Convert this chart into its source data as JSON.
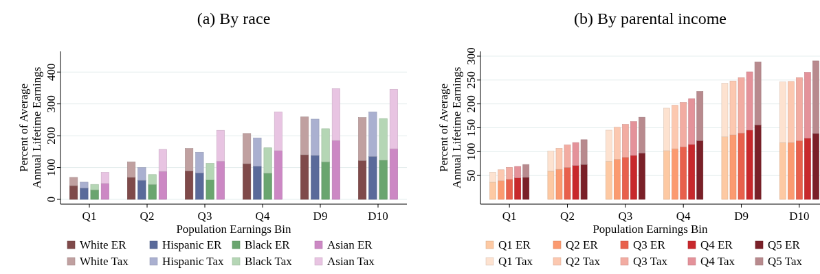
{
  "chart_data": [
    {
      "type": "bar",
      "title": "(a) By race",
      "xlabel": "Population Earnings Bin",
      "ylabel": "Percent of Average\nAnnual Lifetime Earnings",
      "stacked": true,
      "categories": [
        null,
        null,
        null,
        null,
        null,
        "Q1",
        null,
        null,
        null,
        null,
        null,
        null,
        null,
        null,
        null,
        null,
        "Q2",
        null,
        null,
        null,
        null,
        null,
        null,
        null,
        null,
        null,
        null,
        "Q3",
        null,
        null,
        null,
        null,
        null,
        null,
        null,
        null,
        null,
        null,
        "Q4",
        null,
        null,
        null,
        null,
        null,
        null,
        null,
        null,
        null,
        null,
        "D9",
        null,
        null,
        null,
        null,
        null,
        null,
        null,
        null,
        null,
        null,
        "D10",
        null,
        null,
        null,
        null,
        null
      ],
      "ylim": [
        -15,
        465
      ],
      "yticks": [
        0,
        100,
        200,
        300,
        400
      ],
      "grid": "y",
      "legend": "bottom",
      "series": [
        {
          "name": "White ER",
          "color": "#7f4a4a",
          "values": [
            null,
            null,
            43,
            null,
            null,
            null,
            null,
            null,
            null,
            null,
            null,
            null,
            null,
            69,
            null,
            null,
            null,
            null,
            null,
            null,
            null,
            null,
            null,
            null,
            89,
            null,
            null,
            null,
            null,
            null,
            null,
            null,
            null,
            null,
            null,
            112,
            null,
            null,
            null,
            null,
            null,
            null,
            null,
            null,
            null,
            null,
            140,
            null,
            null,
            null,
            null,
            null,
            null,
            null,
            null,
            null,
            null,
            122,
            null,
            null,
            null,
            null,
            null,
            null,
            null,
            null
          ]
        },
        {
          "name": "Hispanic ER",
          "color": "#5a6a9a",
          "values": [
            null,
            null,
            null,
            null,
            36,
            null,
            null,
            null,
            null,
            null,
            null,
            null,
            null,
            null,
            null,
            60,
            null,
            null,
            null,
            null,
            null,
            null,
            null,
            null,
            null,
            null,
            83,
            null,
            null,
            null,
            null,
            null,
            null,
            null,
            null,
            null,
            null,
            104,
            null,
            null,
            null,
            null,
            null,
            null,
            null,
            null,
            null,
            null,
            138,
            null,
            null,
            null,
            null,
            null,
            null,
            null,
            null,
            null,
            null,
            135,
            null,
            null,
            null,
            null,
            null,
            null
          ]
        },
        {
          "name": "Black ER",
          "color": "#6aa56f",
          "values": [
            null,
            null,
            null,
            null,
            null,
            null,
            30,
            null,
            null,
            null,
            null,
            null,
            null,
            null,
            null,
            null,
            null,
            47,
            null,
            null,
            null,
            null,
            null,
            null,
            null,
            null,
            null,
            null,
            61,
            null,
            null,
            null,
            null,
            null,
            null,
            null,
            null,
            null,
            null,
            82,
            null,
            null,
            null,
            null,
            null,
            null,
            null,
            null,
            null,
            null,
            118,
            null,
            null,
            null,
            null,
            null,
            null,
            null,
            null,
            null,
            null,
            123,
            null,
            null,
            null,
            null
          ]
        },
        {
          "name": "Asian ER",
          "color": "#cc88c4",
          "values": [
            null,
            null,
            null,
            null,
            null,
            null,
            null,
            null,
            50,
            null,
            null,
            null,
            null,
            null,
            null,
            null,
            null,
            null,
            null,
            88,
            null,
            null,
            null,
            null,
            null,
            null,
            null,
            null,
            null,
            null,
            120,
            null,
            null,
            null,
            null,
            null,
            null,
            null,
            null,
            null,
            null,
            153,
            null,
            null,
            null,
            null,
            null,
            null,
            null,
            null,
            null,
            null,
            185,
            null,
            null,
            null,
            null,
            null,
            null,
            null,
            null,
            null,
            null,
            159,
            null,
            null
          ]
        },
        {
          "name": "White Tax",
          "color": "#c0a0a0",
          "values": [
            null,
            null,
            26,
            null,
            null,
            null,
            null,
            null,
            null,
            null,
            null,
            null,
            null,
            49,
            null,
            null,
            null,
            null,
            null,
            null,
            null,
            null,
            null,
            null,
            71,
            null,
            null,
            null,
            null,
            null,
            null,
            null,
            null,
            null,
            null,
            95,
            null,
            null,
            null,
            null,
            null,
            null,
            null,
            null,
            null,
            null,
            119,
            null,
            null,
            null,
            null,
            null,
            null,
            null,
            null,
            null,
            null,
            135,
            null,
            null,
            null,
            null,
            null,
            null,
            null,
            null
          ]
        },
        {
          "name": "Hispanic Tax",
          "color": "#aab0d0",
          "values": [
            null,
            null,
            null,
            null,
            18,
            null,
            null,
            null,
            null,
            null,
            null,
            null,
            null,
            null,
            null,
            40,
            null,
            null,
            null,
            null,
            null,
            null,
            null,
            null,
            null,
            null,
            65,
            null,
            null,
            null,
            null,
            null,
            null,
            null,
            null,
            null,
            null,
            89,
            null,
            null,
            null,
            null,
            null,
            null,
            null,
            null,
            null,
            null,
            114,
            null,
            null,
            null,
            null,
            null,
            null,
            null,
            null,
            null,
            null,
            140,
            null,
            null,
            null,
            null,
            null,
            null
          ]
        },
        {
          "name": "Black Tax",
          "color": "#b5d6b5",
          "values": [
            null,
            null,
            null,
            null,
            null,
            null,
            17,
            null,
            null,
            null,
            null,
            null,
            null,
            null,
            null,
            null,
            null,
            31,
            null,
            null,
            null,
            null,
            null,
            null,
            null,
            null,
            null,
            null,
            52,
            null,
            null,
            null,
            null,
            null,
            null,
            null,
            null,
            null,
            null,
            80,
            null,
            null,
            null,
            null,
            null,
            null,
            null,
            null,
            null,
            null,
            104,
            null,
            null,
            null,
            null,
            null,
            null,
            null,
            null,
            null,
            null,
            131,
            null,
            null,
            null,
            null
          ]
        },
        {
          "name": "Asian Tax",
          "color": "#e8c4e2",
          "values": [
            null,
            null,
            null,
            null,
            null,
            null,
            null,
            null,
            35,
            null,
            null,
            null,
            null,
            null,
            null,
            null,
            null,
            null,
            null,
            69,
            null,
            null,
            null,
            null,
            null,
            null,
            null,
            null,
            null,
            null,
            97,
            null,
            null,
            null,
            null,
            null,
            null,
            null,
            null,
            null,
            null,
            122,
            null,
            null,
            null,
            null,
            null,
            null,
            null,
            null,
            null,
            null,
            163,
            null,
            null,
            null,
            null,
            null,
            null,
            null,
            null,
            null,
            null,
            187,
            null,
            null
          ]
        }
      ]
    },
    {
      "type": "bar",
      "title": "(b) By parental income",
      "xlabel": "Population Earnings Bin",
      "ylabel": "Percent of Average\nAnnual Lifetime Earnings",
      "stacked": true,
      "categories": [
        null,
        null,
        null,
        "Q1",
        null,
        null,
        null,
        null,
        null,
        null,
        "Q2",
        null,
        null,
        null,
        null,
        null,
        null,
        "Q3",
        null,
        null,
        null,
        null,
        null,
        null,
        "Q4",
        null,
        null,
        null,
        null,
        null,
        null,
        "D9",
        null,
        null,
        null,
        null,
        null,
        null,
        "D10",
        null,
        null
      ],
      "ylim": [
        -10,
        310
      ],
      "yticks": [
        50,
        100,
        150,
        200,
        250,
        300
      ],
      "grid": "y",
      "legend": "bottom",
      "series": [
        {
          "name": "Q1 ER",
          "color": "#fdc9a3",
          "values": [
            null,
            36,
            null,
            null,
            null,
            null,
            null,
            null,
            59,
            null,
            null,
            null,
            null,
            null,
            null,
            80,
            null,
            null,
            null,
            null,
            null,
            null,
            102,
            null,
            null,
            null,
            null,
            null,
            null,
            131,
            null,
            null,
            null,
            null,
            null,
            null,
            119,
            null,
            null,
            null,
            null
          ]
        },
        {
          "name": "Q2 ER",
          "color": "#fb9a70",
          "values": [
            null,
            null,
            39,
            null,
            null,
            null,
            null,
            null,
            null,
            63,
            null,
            null,
            null,
            null,
            null,
            null,
            84,
            null,
            null,
            null,
            null,
            null,
            null,
            106,
            null,
            null,
            null,
            null,
            null,
            null,
            135,
            null,
            null,
            null,
            null,
            null,
            null,
            119,
            null,
            null,
            null
          ]
        },
        {
          "name": "Q3 ER",
          "color": "#e8604c",
          "values": [
            null,
            null,
            null,
            42,
            null,
            null,
            null,
            null,
            null,
            null,
            67,
            null,
            null,
            null,
            null,
            null,
            null,
            88,
            null,
            null,
            null,
            null,
            null,
            null,
            110,
            null,
            null,
            null,
            null,
            null,
            null,
            139,
            null,
            null,
            null,
            null,
            null,
            null,
            123,
            null,
            null
          ]
        },
        {
          "name": "Q4 ER",
          "color": "#c8282c",
          "values": [
            null,
            null,
            null,
            null,
            45,
            null,
            null,
            null,
            null,
            null,
            null,
            71,
            null,
            null,
            null,
            null,
            null,
            null,
            92,
            null,
            null,
            null,
            null,
            null,
            null,
            115,
            null,
            null,
            null,
            null,
            null,
            null,
            145,
            null,
            null,
            null,
            null,
            null,
            null,
            128,
            null
          ]
        },
        {
          "name": "Q5 ER",
          "color": "#7a2028",
          "values": [
            null,
            null,
            null,
            null,
            null,
            46,
            null,
            null,
            null,
            null,
            null,
            null,
            73,
            null,
            null,
            null,
            null,
            null,
            null,
            97,
            null,
            null,
            null,
            null,
            null,
            null,
            123,
            null,
            null,
            null,
            null,
            null,
            null,
            156,
            null,
            null,
            null,
            null,
            null,
            null,
            138
          ]
        },
        {
          "name": "Q1 Tax",
          "color": "#fde2d0",
          "values": [
            null,
            21,
            null,
            null,
            null,
            null,
            null,
            null,
            42,
            null,
            null,
            null,
            null,
            null,
            null,
            65,
            null,
            null,
            null,
            null,
            null,
            null,
            89,
            null,
            null,
            null,
            null,
            null,
            null,
            112,
            null,
            null,
            null,
            null,
            null,
            null,
            127,
            null,
            null,
            null,
            null
          ]
        },
        {
          "name": "Q2 Tax",
          "color": "#fcc8b0",
          "values": [
            null,
            null,
            23,
            null,
            null,
            null,
            null,
            null,
            null,
            44,
            null,
            null,
            null,
            null,
            null,
            null,
            67,
            null,
            null,
            null,
            null,
            null,
            null,
            91,
            null,
            null,
            null,
            null,
            null,
            null,
            113,
            null,
            null,
            null,
            null,
            null,
            null,
            128,
            null,
            null,
            null
          ]
        },
        {
          "name": "Q3 Tax",
          "color": "#f2aca2",
          "values": [
            null,
            null,
            null,
            25,
            null,
            null,
            null,
            null,
            null,
            null,
            47,
            null,
            null,
            null,
            null,
            null,
            null,
            69,
            null,
            null,
            null,
            null,
            null,
            null,
            93,
            null,
            null,
            null,
            null,
            null,
            null,
            116,
            null,
            null,
            null,
            null,
            null,
            null,
            132,
            null,
            null
          ]
        },
        {
          "name": "Q4 Tax",
          "color": "#e4929a",
          "values": [
            null,
            null,
            null,
            null,
            24,
            null,
            null,
            null,
            null,
            null,
            null,
            48,
            null,
            null,
            null,
            null,
            null,
            null,
            71,
            null,
            null,
            null,
            null,
            null,
            null,
            96,
            null,
            null,
            null,
            null,
            null,
            null,
            122,
            null,
            null,
            null,
            null,
            null,
            null,
            138,
            null
          ]
        },
        {
          "name": "Q5 Tax",
          "color": "#b88a8e",
          "values": [
            null,
            null,
            null,
            null,
            null,
            27,
            null,
            null,
            null,
            null,
            null,
            null,
            52,
            null,
            null,
            null,
            null,
            null,
            null,
            75,
            null,
            null,
            null,
            null,
            null,
            null,
            103,
            null,
            null,
            null,
            null,
            null,
            null,
            132,
            null,
            null,
            null,
            null,
            null,
            null,
            152
          ]
        }
      ]
    }
  ]
}
